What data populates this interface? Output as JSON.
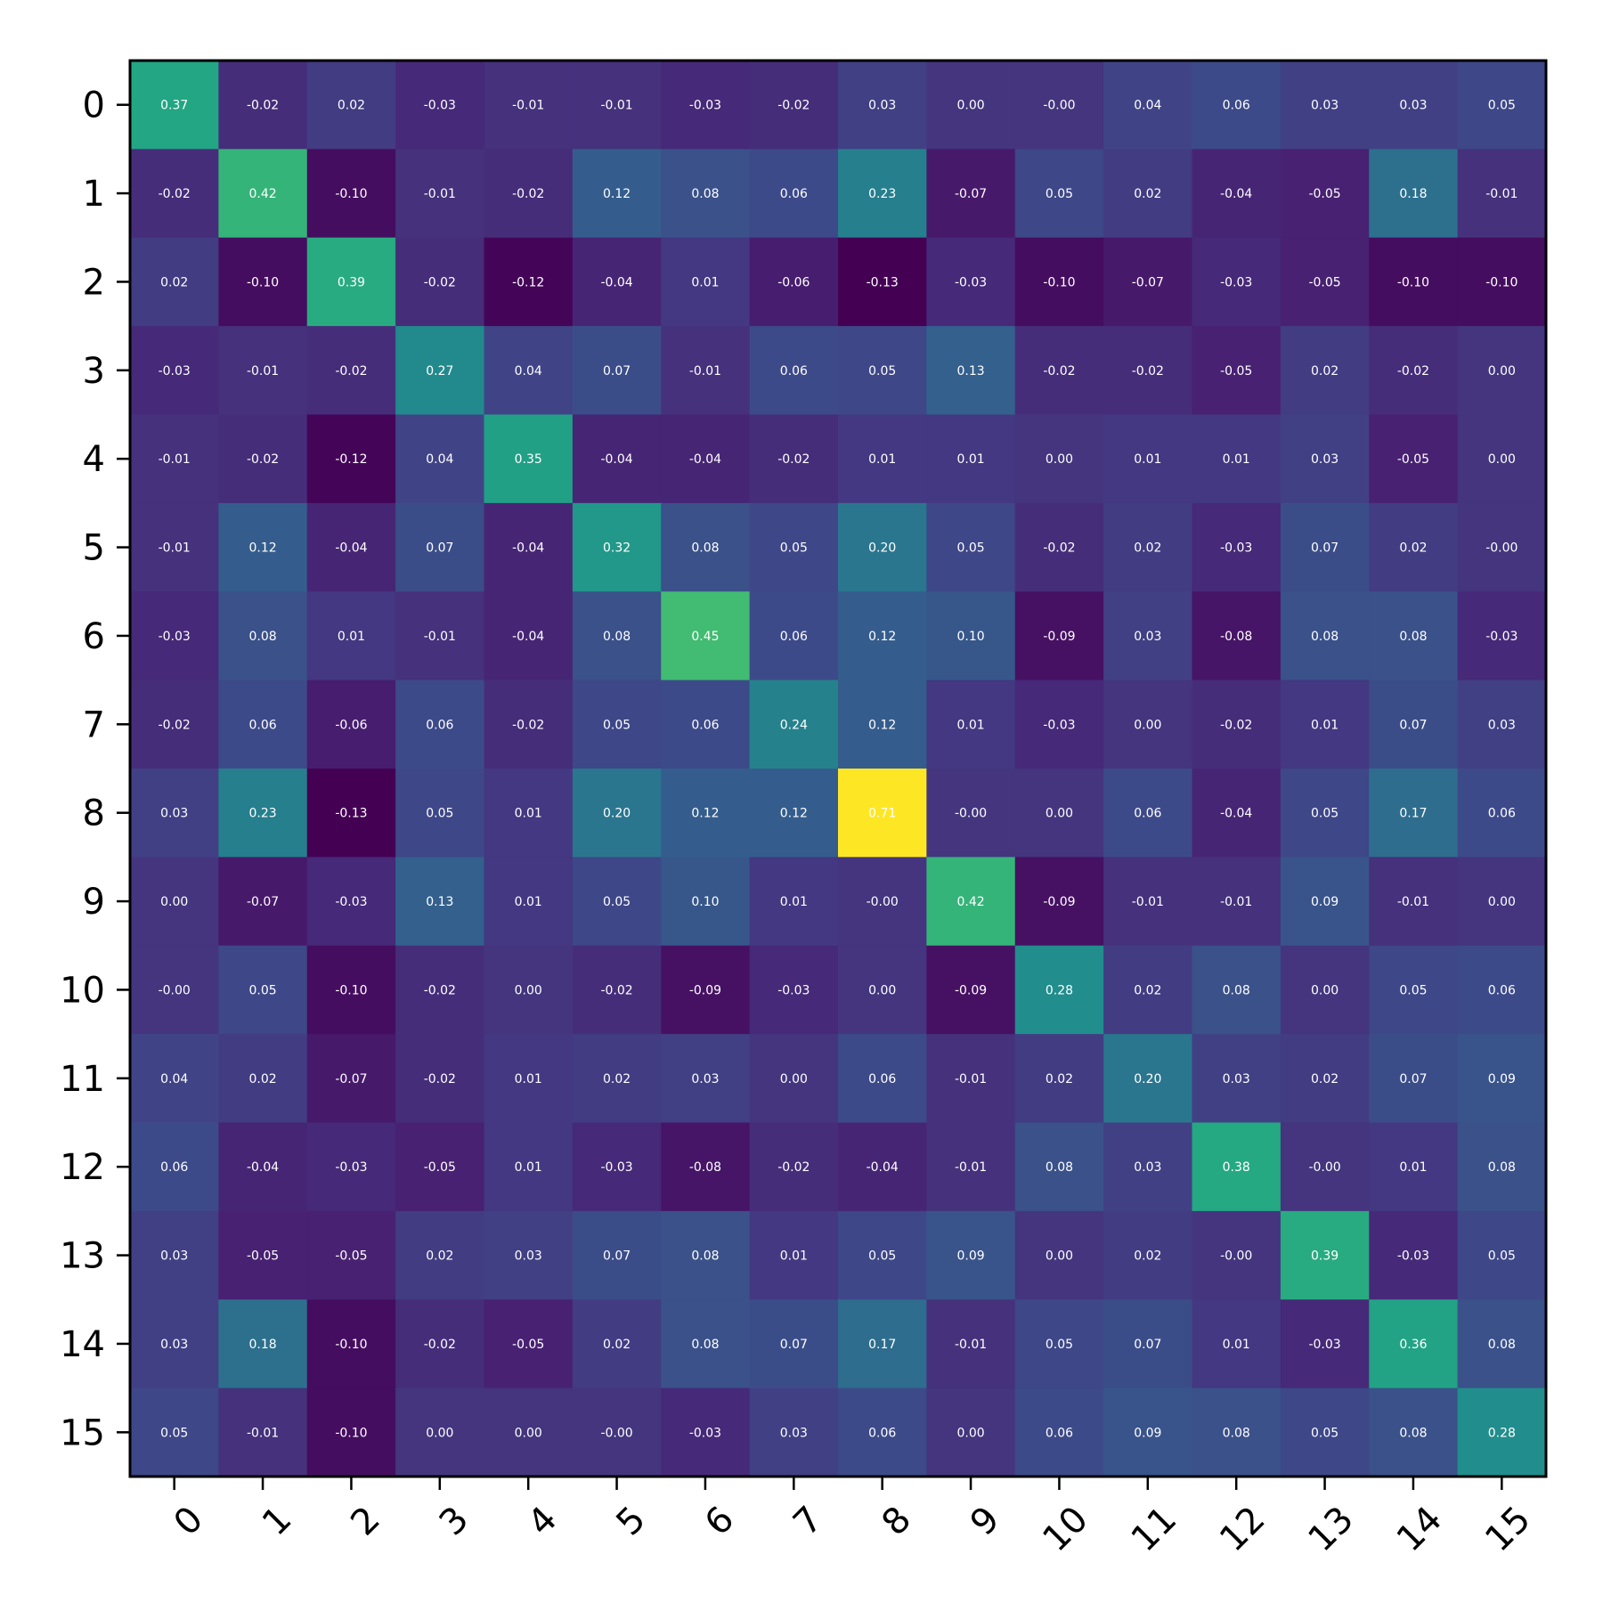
{
  "chart_data": {
    "type": "heatmap",
    "title": "",
    "xlabel": "",
    "ylabel": "",
    "colormap": "viridis",
    "value_range": [
      -0.13,
      0.71
    ],
    "value_format": "2 decimals",
    "x_tick_rotation_deg": 45,
    "x_categories": [
      "0",
      "1",
      "2",
      "3",
      "4",
      "5",
      "6",
      "7",
      "8",
      "9",
      "10",
      "11",
      "12",
      "13",
      "14",
      "15"
    ],
    "y_categories": [
      "0",
      "1",
      "2",
      "3",
      "4",
      "5",
      "6",
      "7",
      "8",
      "9",
      "10",
      "11",
      "12",
      "13",
      "14",
      "15"
    ],
    "cell_labels": [
      [
        "0.37",
        "-0.02",
        "0.02",
        "-0.03",
        "-0.01",
        "-0.01",
        "-0.03",
        "-0.02",
        "0.03",
        "0.00",
        "-0.00",
        "0.04",
        "0.06",
        "0.03",
        "0.03",
        "0.05"
      ],
      [
        "-0.02",
        "0.42",
        "-0.10",
        "-0.01",
        "-0.02",
        "0.12",
        "0.08",
        "0.06",
        "0.23",
        "-0.07",
        "0.05",
        "0.02",
        "-0.04",
        "-0.05",
        "0.18",
        "-0.01"
      ],
      [
        "0.02",
        "-0.10",
        "0.39",
        "-0.02",
        "-0.12",
        "-0.04",
        "0.01",
        "-0.06",
        "-0.13",
        "-0.03",
        "-0.10",
        "-0.07",
        "-0.03",
        "-0.05",
        "-0.10",
        "-0.10"
      ],
      [
        "-0.03",
        "-0.01",
        "-0.02",
        "0.27",
        "0.04",
        "0.07",
        "-0.01",
        "0.06",
        "0.05",
        "0.13",
        "-0.02",
        "-0.02",
        "-0.05",
        "0.02",
        "-0.02",
        "0.00"
      ],
      [
        "-0.01",
        "-0.02",
        "-0.12",
        "0.04",
        "0.35",
        "-0.04",
        "-0.04",
        "-0.02",
        "0.01",
        "0.01",
        "0.00",
        "0.01",
        "0.01",
        "0.03",
        "-0.05",
        "0.00"
      ],
      [
        "-0.01",
        "0.12",
        "-0.04",
        "0.07",
        "-0.04",
        "0.32",
        "0.08",
        "0.05",
        "0.20",
        "0.05",
        "-0.02",
        "0.02",
        "-0.03",
        "0.07",
        "0.02",
        "-0.00"
      ],
      [
        "-0.03",
        "0.08",
        "0.01",
        "-0.01",
        "-0.04",
        "0.08",
        "0.45",
        "0.06",
        "0.12",
        "0.10",
        "-0.09",
        "0.03",
        "-0.08",
        "0.08",
        "0.08",
        "-0.03"
      ],
      [
        "-0.02",
        "0.06",
        "-0.06",
        "0.06",
        "-0.02",
        "0.05",
        "0.06",
        "0.24",
        "0.12",
        "0.01",
        "-0.03",
        "0.00",
        "-0.02",
        "0.01",
        "0.07",
        "0.03"
      ],
      [
        "0.03",
        "0.23",
        "-0.13",
        "0.05",
        "0.01",
        "0.20",
        "0.12",
        "0.12",
        "0.71",
        "-0.00",
        "0.00",
        "0.06",
        "-0.04",
        "0.05",
        "0.17",
        "0.06"
      ],
      [
        "0.00",
        "-0.07",
        "-0.03",
        "0.13",
        "0.01",
        "0.05",
        "0.10",
        "0.01",
        "-0.00",
        "0.42",
        "-0.09",
        "-0.01",
        "-0.01",
        "0.09",
        "-0.01",
        "0.00"
      ],
      [
        "-0.00",
        "0.05",
        "-0.10",
        "-0.02",
        "0.00",
        "-0.02",
        "-0.09",
        "-0.03",
        "0.00",
        "-0.09",
        "0.28",
        "0.02",
        "0.08",
        "0.00",
        "0.05",
        "0.06"
      ],
      [
        "0.04",
        "0.02",
        "-0.07",
        "-0.02",
        "0.01",
        "0.02",
        "0.03",
        "0.00",
        "0.06",
        "-0.01",
        "0.02",
        "0.20",
        "0.03",
        "0.02",
        "0.07",
        "0.09"
      ],
      [
        "0.06",
        "-0.04",
        "-0.03",
        "-0.05",
        "0.01",
        "-0.03",
        "-0.08",
        "-0.02",
        "-0.04",
        "-0.01",
        "0.08",
        "0.03",
        "0.38",
        "-0.00",
        "0.01",
        "0.08"
      ],
      [
        "0.03",
        "-0.05",
        "-0.05",
        "0.02",
        "0.03",
        "0.07",
        "0.08",
        "0.01",
        "0.05",
        "0.09",
        "0.00",
        "0.02",
        "-0.00",
        "0.39",
        "-0.03",
        "0.05"
      ],
      [
        "0.03",
        "0.18",
        "-0.10",
        "-0.02",
        "-0.05",
        "0.02",
        "0.08",
        "0.07",
        "0.17",
        "-0.01",
        "0.05",
        "0.07",
        "0.01",
        "-0.03",
        "0.36",
        "0.08"
      ],
      [
        "0.05",
        "-0.01",
        "-0.10",
        "0.00",
        "0.00",
        "-0.00",
        "-0.03",
        "0.03",
        "0.06",
        "0.00",
        "0.06",
        "0.09",
        "0.08",
        "0.05",
        "0.08",
        "0.28"
      ]
    ]
  }
}
